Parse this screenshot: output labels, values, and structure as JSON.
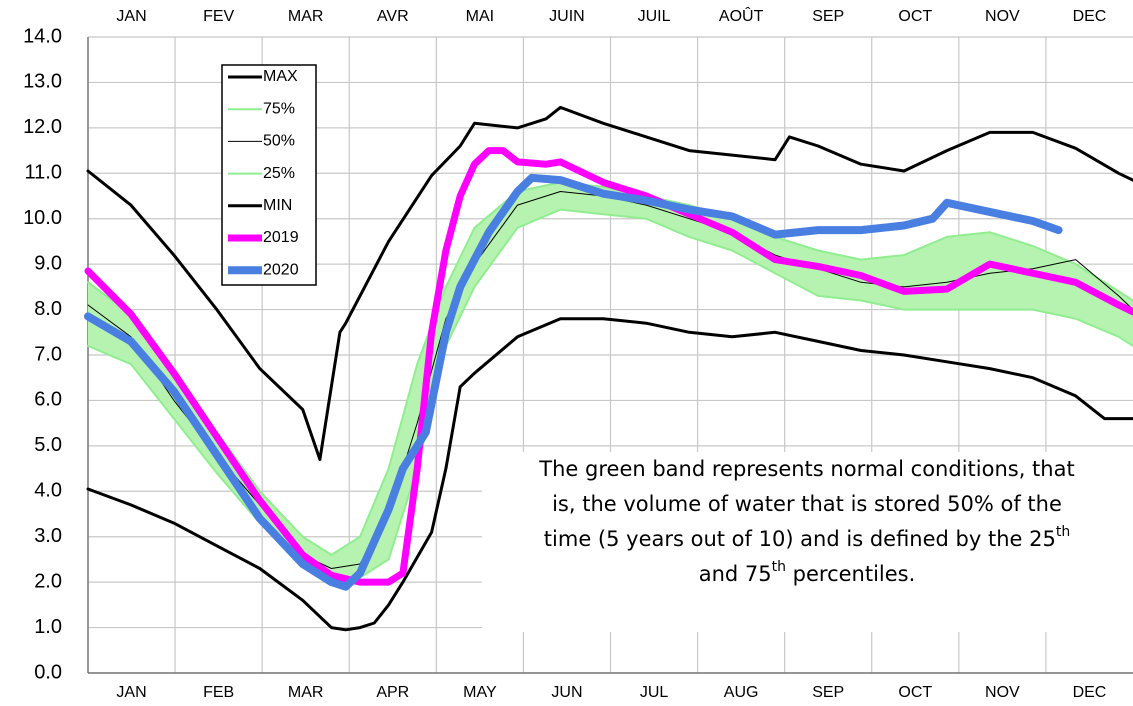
{
  "chart_data": {
    "type": "line",
    "categories": [
      "JAN",
      "FEB",
      "MAR",
      "APR",
      "MAY",
      "JUN",
      "JUL",
      "AUG",
      "SEP",
      "OCT",
      "NOV",
      "DEC"
    ],
    "categories_top": [
      "JAN",
      "FEV",
      "MAR",
      "AVR",
      "MAI",
      "JUIN",
      "JUIL",
      "AOÛT",
      "SEP",
      "OCT",
      "NOV",
      "DEC"
    ],
    "xlim": [
      0,
      365
    ],
    "ylim": [
      0,
      14
    ],
    "yticks": [
      {
        "value": 0,
        "label": "0.0"
      },
      {
        "value": 1,
        "label": "1.0"
      },
      {
        "value": 2,
        "label": "2.0"
      },
      {
        "value": 3,
        "label": "3.0"
      },
      {
        "value": 4,
        "label": "4.0"
      },
      {
        "value": 5,
        "label": "5.0"
      },
      {
        "value": 6,
        "label": "6.0"
      },
      {
        "value": 7,
        "label": "7.0"
      },
      {
        "value": 8,
        "label": "8.0"
      },
      {
        "value": 9,
        "label": "9.0"
      },
      {
        "value": 10,
        "label": "10.0"
      },
      {
        "value": 11,
        "label": "11.0"
      },
      {
        "value": 12,
        "label": "12.0"
      },
      {
        "value": 13,
        "label": "13.0"
      },
      {
        "value": 14,
        "label": "14.0"
      }
    ],
    "grid": true,
    "band_color": "#b6f2b0",
    "series": [
      {
        "name": "MAX",
        "color": "#000000",
        "x": [
          0,
          15,
          30,
          45,
          60,
          75,
          81,
          88,
          90,
          105,
          120,
          130,
          135,
          150,
          160,
          165,
          180,
          195,
          210,
          225,
          240,
          245,
          255,
          270,
          285,
          300,
          315,
          330,
          345,
          360,
          365
        ],
        "values": [
          11.05,
          10.3,
          9.2,
          8.0,
          6.7,
          5.8,
          4.7,
          7.5,
          7.7,
          9.5,
          10.95,
          11.6,
          12.1,
          12.0,
          12.2,
          12.45,
          12.1,
          11.8,
          11.5,
          11.4,
          11.3,
          11.8,
          11.6,
          11.2,
          11.05,
          11.5,
          11.9,
          11.9,
          11.55,
          11.0,
          10.85
        ]
      },
      {
        "name": "75%",
        "color": "#90ee90",
        "x": [
          0,
          15,
          30,
          45,
          60,
          75,
          85,
          95,
          105,
          115,
          125,
          135,
          150,
          165,
          180,
          195,
          210,
          225,
          240,
          255,
          270,
          285,
          300,
          315,
          330,
          345,
          360,
          365
        ],
        "values": [
          8.6,
          7.9,
          6.6,
          5.3,
          4.0,
          3.0,
          2.6,
          3.0,
          4.5,
          6.8,
          8.5,
          9.8,
          10.6,
          10.8,
          10.7,
          10.5,
          10.3,
          10.0,
          9.6,
          9.3,
          9.1,
          9.2,
          9.6,
          9.7,
          9.4,
          9.0,
          8.4,
          8.2
        ]
      },
      {
        "name": "50%",
        "color": "#000000",
        "x": [
          0,
          15,
          30,
          45,
          60,
          75,
          85,
          95,
          105,
          115,
          125,
          135,
          150,
          165,
          180,
          195,
          210,
          225,
          240,
          255,
          270,
          285,
          300,
          315,
          330,
          345,
          360,
          365
        ],
        "values": [
          8.1,
          7.4,
          6.0,
          4.8,
          3.7,
          2.6,
          2.3,
          2.4,
          3.5,
          5.5,
          7.8,
          9.0,
          10.3,
          10.6,
          10.5,
          10.3,
          10.0,
          9.7,
          9.2,
          8.9,
          8.6,
          8.5,
          8.6,
          8.8,
          8.9,
          9.1,
          8.3,
          8.0
        ]
      },
      {
        "name": "25%",
        "color": "#90ee90",
        "x": [
          0,
          15,
          30,
          45,
          60,
          75,
          85,
          95,
          105,
          115,
          125,
          135,
          150,
          165,
          180,
          195,
          210,
          225,
          240,
          255,
          270,
          285,
          300,
          315,
          330,
          345,
          360,
          365
        ],
        "values": [
          7.2,
          6.8,
          5.6,
          4.4,
          3.3,
          2.4,
          2.1,
          2.1,
          2.5,
          4.5,
          7.2,
          8.5,
          9.8,
          10.2,
          10.1,
          10.0,
          9.6,
          9.3,
          8.8,
          8.3,
          8.2,
          8.0,
          8.0,
          8.0,
          8.0,
          7.8,
          7.4,
          7.2
        ]
      },
      {
        "name": "MIN",
        "color": "#000000",
        "x": [
          0,
          15,
          30,
          45,
          60,
          75,
          85,
          90,
          95,
          100,
          105,
          110,
          120,
          125,
          130,
          135,
          150,
          165,
          180,
          195,
          210,
          225,
          240,
          255,
          270,
          285,
          300,
          315,
          330,
          345,
          355,
          365
        ],
        "values": [
          4.05,
          3.7,
          3.3,
          2.8,
          2.3,
          1.6,
          1.0,
          0.95,
          1.0,
          1.1,
          1.5,
          2.0,
          3.1,
          4.5,
          6.3,
          6.6,
          7.4,
          7.8,
          7.8,
          7.7,
          7.5,
          7.4,
          7.5,
          7.3,
          7.1,
          7.0,
          6.85,
          6.7,
          6.5,
          6.1,
          5.6,
          5.6
        ]
      },
      {
        "name": "2019",
        "color": "#ff00ff",
        "x": [
          0,
          15,
          30,
          45,
          60,
          75,
          85,
          95,
          105,
          110,
          115,
          120,
          125,
          130,
          135,
          140,
          145,
          150,
          160,
          165,
          180,
          195,
          210,
          225,
          240,
          255,
          270,
          285,
          300,
          315,
          330,
          345,
          360,
          365
        ],
        "values": [
          8.85,
          7.9,
          6.6,
          5.2,
          3.8,
          2.6,
          2.15,
          2.0,
          2.0,
          2.2,
          4.5,
          7.5,
          9.3,
          10.5,
          11.2,
          11.5,
          11.5,
          11.25,
          11.2,
          11.25,
          10.8,
          10.5,
          10.1,
          9.7,
          9.1,
          8.95,
          8.75,
          8.4,
          8.45,
          9.0,
          8.8,
          8.6,
          8.1,
          7.95
        ]
      },
      {
        "name": "2020",
        "color": "#4a7fe2",
        "x": [
          0,
          15,
          30,
          45,
          60,
          75,
          85,
          90,
          95,
          105,
          110,
          115,
          118,
          125,
          130,
          140,
          150,
          155,
          165,
          180,
          195,
          210,
          225,
          240,
          255,
          270,
          285,
          295,
          300,
          315,
          330,
          339
        ],
        "values": [
          7.85,
          7.3,
          6.2,
          4.8,
          3.4,
          2.4,
          2.0,
          1.9,
          2.2,
          3.6,
          4.5,
          5.0,
          5.3,
          7.5,
          8.5,
          9.7,
          10.6,
          10.9,
          10.85,
          10.55,
          10.4,
          10.2,
          10.05,
          9.65,
          9.75,
          9.75,
          9.85,
          10.0,
          10.35,
          10.15,
          9.95,
          9.75
        ]
      }
    ],
    "annotation": [
      [
        "The green band represents normal conditions, that"
      ],
      [
        "is, the volume of water that is stored 50% of the"
      ],
      [
        "time (5 years out of 10) and is defined by the 25",
        {
          "sup": "th"
        }
      ],
      [
        "and 75",
        {
          "sup": "th"
        },
        " percentiles."
      ]
    ]
  }
}
